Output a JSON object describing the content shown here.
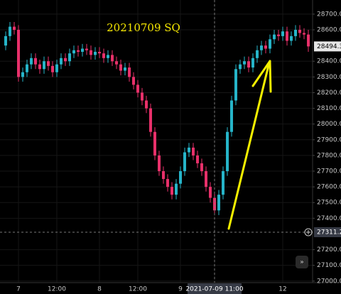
{
  "chart_data": {
    "type": "candlestick",
    "title": "20210709 SQ",
    "categories": [
      null,
      null,
      null,
      "7",
      null,
      null,
      null,
      null,
      null,
      null,
      null,
      null,
      "12:00",
      null,
      null,
      null,
      null,
      null,
      null,
      null,
      null,
      null,
      "8",
      null,
      null,
      null,
      null,
      null,
      null,
      null,
      null,
      "12:00",
      null,
      null,
      null,
      null,
      null,
      null,
      null,
      null,
      null,
      "9",
      null,
      null,
      null,
      null,
      null,
      null,
      null,
      "2021-07-09 11:00",
      null,
      null,
      null,
      null,
      null,
      null,
      null,
      null,
      null,
      null,
      null,
      null,
      null,
      null,
      null,
      "12",
      null,
      null,
      null,
      null,
      null,
      null
    ],
    "open": [
      28500,
      28560,
      28620,
      28600,
      28300,
      28330,
      28380,
      28420,
      28380,
      28350,
      28400,
      28370,
      28330,
      28380,
      28420,
      28400,
      28450,
      28470,
      28460,
      28480,
      28470,
      28440,
      28460,
      28450,
      28420,
      28440,
      28400,
      28380,
      28340,
      28360,
      28300,
      28250,
      28200,
      28150,
      28100,
      27950,
      27800,
      27700,
      27650,
      27600,
      27550,
      27620,
      27700,
      27820,
      27850,
      27800,
      27750,
      27700,
      27600,
      27530,
      27450,
      27550,
      27700,
      27950,
      28150,
      28350,
      28380,
      28400,
      28360,
      28420,
      28470,
      28500,
      28480,
      28540,
      28570,
      28560,
      28590,
      28530,
      28560,
      28600,
      28580,
      28570
    ],
    "high": [
      28590,
      28650,
      28650,
      28630,
      28360,
      28410,
      28450,
      28450,
      28410,
      28430,
      28430,
      28400,
      28410,
      28450,
      28450,
      28480,
      28500,
      28500,
      28510,
      28510,
      28500,
      28490,
      28490,
      28480,
      28470,
      28470,
      28430,
      28410,
      28390,
      28390,
      28330,
      28280,
      28230,
      28180,
      28130,
      27980,
      27830,
      27730,
      27680,
      27630,
      27650,
      27730,
      27850,
      27880,
      27880,
      27830,
      27780,
      27730,
      27630,
      27560,
      27580,
      27730,
      27980,
      28180,
      28380,
      28410,
      28430,
      28430,
      28450,
      28500,
      28530,
      28530,
      28570,
      28600,
      28600,
      28620,
      28620,
      28590,
      28630,
      28630,
      28610,
      28600
    ],
    "low": [
      28470,
      28530,
      28570,
      28270,
      28270,
      28300,
      28350,
      28350,
      28320,
      28320,
      28340,
      28300,
      28300,
      28350,
      28370,
      28370,
      28420,
      28430,
      28430,
      28440,
      28410,
      28410,
      28420,
      28390,
      28390,
      28370,
      28350,
      28310,
      28310,
      28270,
      28220,
      28170,
      28120,
      28070,
      27920,
      27770,
      27670,
      27620,
      27570,
      27520,
      27520,
      27590,
      27670,
      27790,
      27770,
      27720,
      27670,
      27570,
      27500,
      27420,
      27420,
      27520,
      27670,
      27920,
      28120,
      28320,
      28350,
      28330,
      28330,
      28390,
      28440,
      28450,
      28450,
      28510,
      28530,
      28530,
      28500,
      28500,
      28530,
      28550,
      28540,
      28460
    ],
    "close": [
      28560,
      28620,
      28600,
      28300,
      28330,
      28380,
      28420,
      28380,
      28350,
      28400,
      28370,
      28330,
      28380,
      28420,
      28400,
      28450,
      28470,
      28460,
      28480,
      28470,
      28440,
      28460,
      28450,
      28420,
      28440,
      28400,
      28380,
      28340,
      28360,
      28300,
      28250,
      28200,
      28150,
      28100,
      27950,
      27800,
      27700,
      27650,
      27600,
      27550,
      27620,
      27700,
      27820,
      27850,
      27800,
      27750,
      27700,
      27600,
      27530,
      27450,
      27550,
      27700,
      27950,
      28150,
      28350,
      28380,
      28400,
      28360,
      28420,
      28470,
      28500,
      28480,
      28540,
      28570,
      28560,
      28590,
      28530,
      28560,
      28600,
      28580,
      28570,
      28494.3
    ],
    "up_color": "#26b5c9",
    "down_color": "#e8306a",
    "ylim": [
      26990,
      28790
    ],
    "yticks": [
      {
        "value": 27000,
        "label": "27000.0"
      },
      {
        "value": 27100,
        "label": "27100.0"
      },
      {
        "value": 27200,
        "label": "27200.0"
      },
      {
        "value": 27400,
        "label": "27400.0"
      },
      {
        "value": 27500,
        "label": "27500.0"
      },
      {
        "value": 27600,
        "label": "27600.0"
      },
      {
        "value": 27700,
        "label": "27700.0"
      },
      {
        "value": 27800,
        "label": "27800.0"
      },
      {
        "value": 27900,
        "label": "27900.0"
      },
      {
        "value": 28000,
        "label": "28000.0"
      },
      {
        "value": 28100,
        "label": "28100.0"
      },
      {
        "value": 28200,
        "label": "28200.0"
      },
      {
        "value": 28300,
        "label": "28300.0"
      },
      {
        "value": 28400,
        "label": "28400.0"
      },
      {
        "value": 28600,
        "label": "28600.0"
      },
      {
        "value": 28700,
        "label": "28700.0"
      }
    ],
    "grid": true,
    "last_price": 28494.3,
    "crosshair_price": 27311.2
  }
}
